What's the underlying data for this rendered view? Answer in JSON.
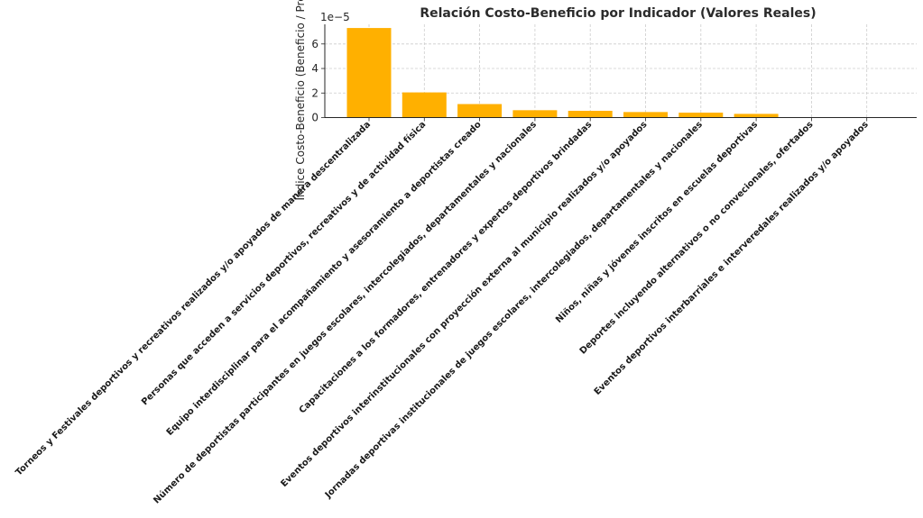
{
  "chart_data": {
    "type": "bar",
    "title": "Relación Costo-Beneficio por Indicador (Valores Reales)",
    "ylabel": "Índice Costo-Beneficio (Beneficio / Presupuesto)",
    "xlabel": "",
    "y_scale_offset_text": "1e−5",
    "ylim": [
      0,
      7.6e-05
    ],
    "yticks": [
      0,
      2e-05,
      4e-05,
      6e-05
    ],
    "ytick_labels": [
      "0",
      "2",
      "4",
      "6"
    ],
    "grid": true,
    "bar_color": "#FFB000",
    "categories": [
      "Torneos y Festivales deportivos y recreativos realizados y/o apoyados de manera descentralizada",
      "Personas que acceden a servicios deportivos, recreativos y de actividad física",
      "Equipo interdisciplinar para el acompañamiento y asesoramiento a deportistas creado",
      "Número de deportistas participantes en juegos escolares, intercolegiados, departamentales y nacionales",
      "Capacitaciones a los formadores, entrenadores y expertos deportivos brindadas",
      "Eventos deportivos interinstitucionales con proyección externa al municipio realizados y/o apoyados",
      "Jornadas deportivas institucionales de juegos escolares, intercolegiados, departamentales y nacionales",
      "Niños, niñas y jóvenes inscritos en escuelas deportivas",
      "Deportes incluyendo alternativos  o no convecionales, ofertados",
      "Eventos deportivos interbarriales e interveredales  realizados y/o apoyados"
    ],
    "values": [
      7.3e-05,
      2.05e-05,
      1.1e-05,
      6e-06,
      5.5e-06,
      4.5e-06,
      4e-06,
      3e-06,
      3e-07,
      2e-07
    ]
  }
}
